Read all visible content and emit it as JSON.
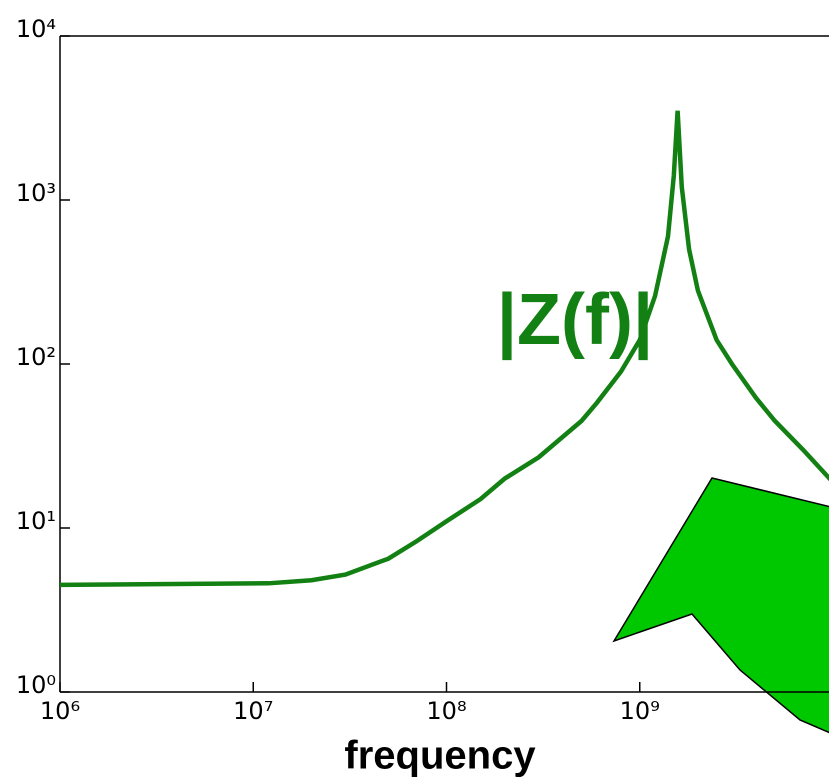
{
  "chart_data": {
    "type": "line",
    "xlabel": "frequency",
    "annotation": "|Z(f)|",
    "xlog": true,
    "ylog": true,
    "xlim": [
      1000000,
      10000000000
    ],
    "ylim": [
      1,
      10000
    ],
    "xticks": [
      {
        "value": 1000000,
        "label": "10⁶"
      },
      {
        "value": 10000000,
        "label": "10⁷"
      },
      {
        "value": 100000000,
        "label": "10⁸"
      },
      {
        "value": 1000000000,
        "label": "10⁹"
      }
    ],
    "yticks": [
      {
        "value": 1,
        "label": "10⁰"
      },
      {
        "value": 10,
        "label": "10¹"
      },
      {
        "value": 100,
        "label": "10²"
      },
      {
        "value": 1000,
        "label": "10³"
      },
      {
        "value": 10000,
        "label": "10⁴"
      }
    ],
    "x": [
      1000000,
      12000000,
      20000000,
      30000000,
      50000000,
      70000000,
      100000000,
      150000000,
      200000000,
      300000000,
      400000000,
      500000000,
      600000000,
      800000000,
      1000000000,
      1200000000,
      1400000000,
      1500000000,
      1570000000,
      1650000000,
      1800000000,
      2000000000,
      2500000000,
      3000000000,
      4000000000,
      5000000000,
      7000000000,
      10000000000
    ],
    "series": [
      {
        "color": "#138013",
        "values": [
          4.5,
          4.6,
          4.8,
          5.2,
          6.5,
          8.3,
          11,
          15,
          20,
          27,
          36,
          45,
          58,
          90,
          140,
          260,
          600,
          1400,
          3500,
          1200,
          500,
          280,
          140,
          100,
          62,
          45,
          30,
          19
        ]
      }
    ]
  }
}
